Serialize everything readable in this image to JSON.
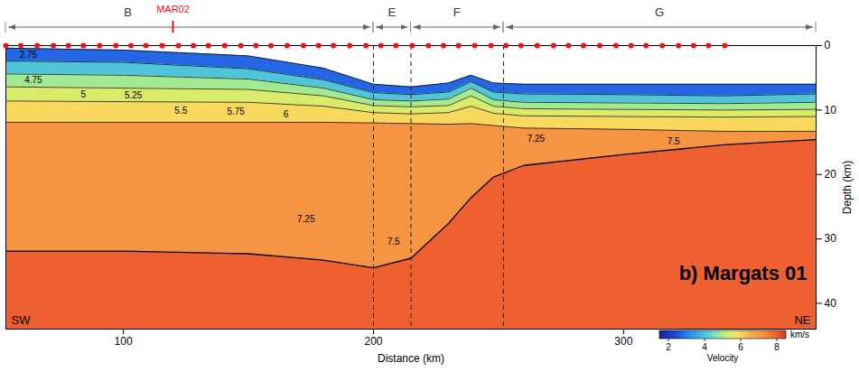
{
  "chart_data": {
    "type": "section",
    "title": "b) Margats 01",
    "x_label": "Distance (km)",
    "y_label": "Depth (km)",
    "xlim": [
      53,
      377
    ],
    "xticks": [
      100,
      200,
      300
    ],
    "ylim": [
      0,
      44
    ],
    "yticks": [
      0,
      10,
      20,
      30,
      40
    ],
    "x": [
      53,
      100,
      150,
      180,
      200,
      215,
      230,
      239,
      248,
      260,
      300,
      340,
      377
    ],
    "seafloor": [
      0.4,
      0.7,
      1.6,
      3.5,
      6.0,
      6.4,
      5.8,
      4.6,
      5.8,
      6.0,
      6.0,
      6.0,
      6.0
    ],
    "layers": [
      {
        "velocity": 2.75,
        "base": [
          2.4,
          2.6,
          3.6,
          5.3,
          7.3,
          7.6,
          7.2,
          5.6,
          7.2,
          7.5,
          7.6,
          7.8,
          7.5
        ]
      },
      {
        "velocity": 4.0,
        "base": [
          4.4,
          4.6,
          5.2,
          6.6,
          8.4,
          8.6,
          8.3,
          6.6,
          8.4,
          8.8,
          8.9,
          9.0,
          8.8
        ]
      },
      {
        "velocity": 4.9,
        "base": [
          6.4,
          6.6,
          6.8,
          7.8,
          9.3,
          9.5,
          9.3,
          7.8,
          9.4,
          9.8,
          9.9,
          10.0,
          9.9
        ]
      },
      {
        "velocity": 5.4,
        "base": [
          8.6,
          8.7,
          8.8,
          9.4,
          10.4,
          10.6,
          10.4,
          9.4,
          10.5,
          10.9,
          11.0,
          11.1,
          11.0
        ]
      },
      {
        "velocity": 5.9,
        "base": [
          11.9,
          11.9,
          11.9,
          11.9,
          12.0,
          12.1,
          12.2,
          12.1,
          12.4,
          12.8,
          13.0,
          13.3,
          13.3
        ]
      },
      {
        "velocity": 7.2,
        "base": [
          31.9,
          31.9,
          32.3,
          33.3,
          34.5,
          33.0,
          27.6,
          23.6,
          20.4,
          18.6,
          16.9,
          15.4,
          14.6
        ]
      },
      {
        "velocity": 8.0
      }
    ],
    "stations": {
      "x": [
        53,
        59,
        65.5,
        72,
        78,
        84,
        90.5,
        97,
        103,
        109,
        115.5,
        122,
        128,
        134,
        140.5,
        147,
        153,
        159,
        165.5,
        172,
        178,
        184,
        190.5,
        197,
        203,
        209,
        215.5,
        222,
        228,
        234,
        240.5,
        247,
        253,
        259,
        265.5,
        272,
        278,
        284,
        290.5,
        297,
        303,
        309,
        315.5,
        322,
        328,
        334,
        340.5
      ],
      "depth": 0,
      "color": "#e8141c",
      "marker": "circle"
    },
    "station_label": {
      "text": "MAR02",
      "x": 120
    },
    "segments": [
      {
        "label": "B",
        "from": 53,
        "to": 200
      },
      {
        "label": "E",
        "from": 200,
        "to": 215
      },
      {
        "label": "F",
        "from": 215,
        "to": 252
      },
      {
        "label": "G",
        "from": 252,
        "to": 377
      }
    ],
    "contour_labels": [
      {
        "text": "2.75",
        "x": 62,
        "y": 1.5
      },
      {
        "text": "4.75",
        "x": 64,
        "y": 5.4
      },
      {
        "text": "5",
        "x": 84,
        "y": 7.6
      },
      {
        "text": "5.25",
        "x": 104,
        "y": 7.7
      },
      {
        "text": "5.5",
        "x": 123,
        "y": 10.2
      },
      {
        "text": "5.75",
        "x": 145,
        "y": 10.3
      },
      {
        "text": "6",
        "x": 165,
        "y": 10.7
      },
      {
        "text": "7.25",
        "x": 173,
        "y": 27
      },
      {
        "text": "7.5",
        "x": 208,
        "y": 30.5
      },
      {
        "text": "7.25",
        "x": 265,
        "y": 14.5
      },
      {
        "text": "7.5",
        "x": 320,
        "y": 14.9
      }
    ],
    "direction_labels": [
      "SW",
      "NE"
    ],
    "colorbar": {
      "range": [
        1.5,
        8.5
      ],
      "ticks": [
        2,
        4,
        6,
        8
      ],
      "label": "Velocity",
      "unit": "km/s"
    }
  }
}
